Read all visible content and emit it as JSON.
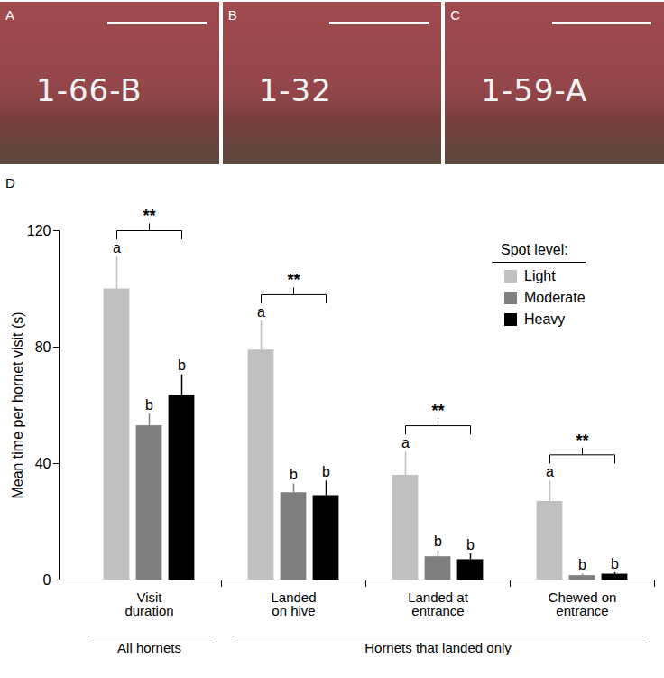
{
  "panels": [
    {
      "label": "A",
      "text": "1-66-B"
    },
    {
      "label": "B",
      "text": "1-32"
    },
    {
      "label": "C",
      "text": "1-59-A"
    }
  ],
  "chart_data": {
    "type": "bar",
    "panel_label": "D",
    "y_label": "Mean time per hornet visit (s)",
    "categories": [
      "Visit duration",
      "Landed on hive",
      "Landed at entrance",
      "Chewed on entrance"
    ],
    "legend_title": "Spot level:",
    "legend": "top-right",
    "series": [
      {
        "name": "Light",
        "color": "#c0c0c0",
        "values": [
          100,
          79,
          36,
          27
        ],
        "errors": [
          11,
          10,
          8,
          7
        ],
        "letters": [
          "a",
          "a",
          "a",
          "a"
        ]
      },
      {
        "name": "Moderate",
        "color": "#7f7f7f",
        "values": [
          53,
          30,
          8,
          1.5
        ],
        "errors": [
          4,
          3,
          2,
          0.5
        ],
        "letters": [
          "b",
          "b",
          "b",
          "b"
        ]
      },
      {
        "name": "Heavy",
        "color": "#000000",
        "values": [
          63.5,
          29,
          7,
          2
        ],
        "errors": [
          7,
          5,
          2,
          0.5
        ],
        "letters": [
          "b",
          "b",
          "b",
          "b"
        ]
      }
    ],
    "significance": [
      "**",
      "**",
      "**",
      "**"
    ],
    "category_groups": [
      {
        "label": "All hornets",
        "categories": [
          "Visit duration"
        ]
      },
      {
        "label": "Hornets that landed only",
        "categories": [
          "Landed on hive",
          "Landed at entrance",
          "Chewed on entrance"
        ]
      }
    ],
    "ylim": [
      0,
      120
    ],
    "yticks": [
      0,
      40,
      80,
      120
    ]
  }
}
